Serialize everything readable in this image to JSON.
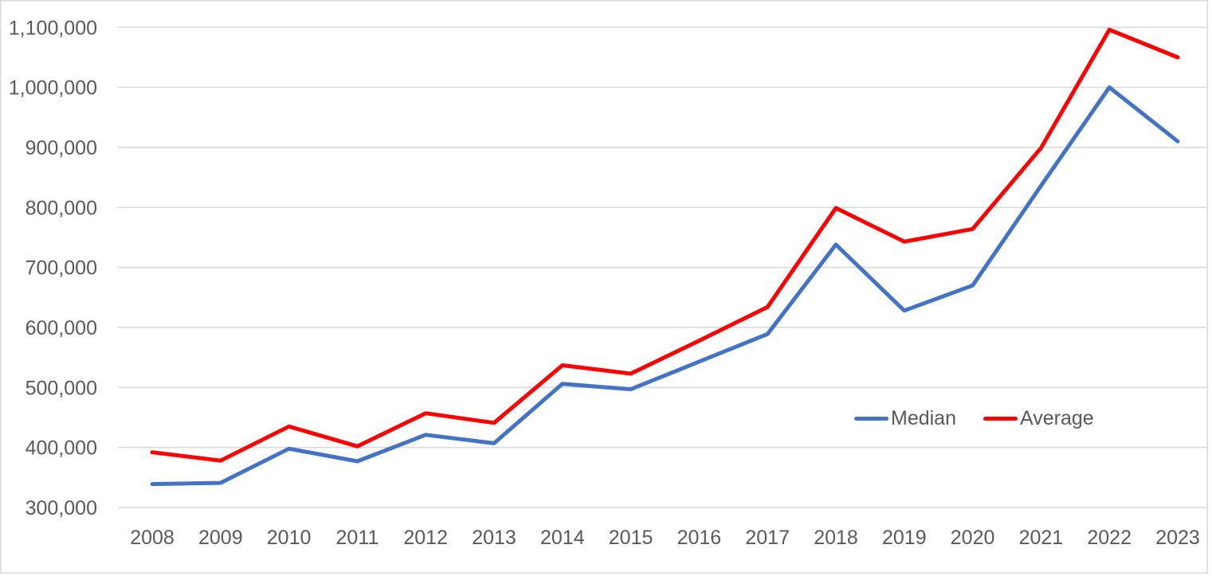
{
  "chart": {
    "background_color": "#FFFFFF",
    "border_color": "#D9D9D9",
    "gridline_color": "#D9D9D9",
    "axis_label_color": "#595959",
    "legend": {
      "position": "inside-right",
      "items": [
        {
          "label": "Median",
          "color": "#4472C4"
        },
        {
          "label": "Average",
          "color": "#FF0000"
        }
      ]
    }
  },
  "chart_data": {
    "type": "line",
    "title": "",
    "xlabel": "",
    "ylabel": "",
    "categories": [
      "2008",
      "2009",
      "2010",
      "2011",
      "2012",
      "2013",
      "2014",
      "2015",
      "2016",
      "2017",
      "2018",
      "2019",
      "2020",
      "2021",
      "2022",
      "2023"
    ],
    "series": [
      {
        "name": "Median",
        "color": "#4472C4",
        "values": [
          339000,
          341000,
          398000,
          377000,
          421000,
          407000,
          506000,
          497000,
          543000,
          589000,
          738000,
          628000,
          670000,
          836000,
          1000000,
          910000
        ]
      },
      {
        "name": "Average",
        "color": "#FF0000",
        "values": [
          392000,
          378000,
          435000,
          402000,
          457000,
          441000,
          537000,
          523000,
          578000,
          634000,
          799000,
          743000,
          764000,
          899000,
          1096000,
          1050000
        ]
      }
    ],
    "ylim": [
      300000,
      1100000
    ],
    "ytick_step": 100000,
    "ytick_labels": [
      "300,000",
      "400,000",
      "500,000",
      "600,000",
      "700,000",
      "800,000",
      "900,000",
      "1,000,000",
      "1,100,000"
    ],
    "grid": true,
    "legend_position": "inside-right",
    "line_width": 5
  }
}
